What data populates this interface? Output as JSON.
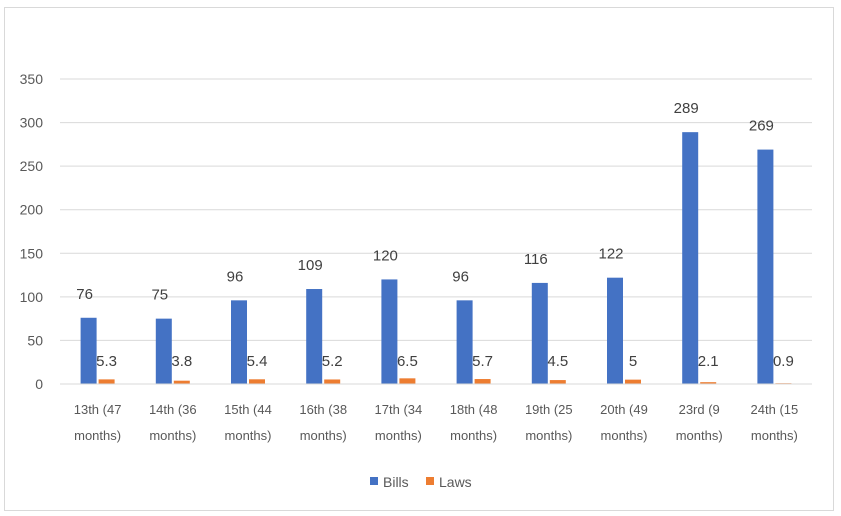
{
  "chart_data": {
    "type": "bar",
    "categories": [
      [
        "13th (47",
        "months)"
      ],
      [
        "14th (36",
        "months)"
      ],
      [
        "15th (44",
        "months)"
      ],
      [
        "16th (38",
        "months)"
      ],
      [
        "17th (34",
        "months)"
      ],
      [
        "18th (48",
        "months)"
      ],
      [
        "19th (25",
        "months)"
      ],
      [
        "20th (49",
        "months)"
      ],
      [
        "23rd (9",
        "months)"
      ],
      [
        "24th (15",
        "months)"
      ]
    ],
    "series": [
      {
        "name": "Bills",
        "values": [
          76,
          75,
          96,
          109,
          120,
          96,
          116,
          122,
          289,
          269
        ],
        "labels": [
          "76",
          "75",
          "96",
          "109",
          "120",
          "96",
          "116",
          "122",
          "289",
          "269"
        ],
        "color": "#4472c4"
      },
      {
        "name": "Laws",
        "values": [
          5.3,
          3.8,
          5.4,
          5.2,
          6.5,
          5.7,
          4.5,
          5,
          2.1,
          0.9
        ],
        "labels": [
          "5.3",
          "3.8",
          "5.4",
          "5.2",
          "6.5",
          "5.7",
          "4.5",
          "5",
          "2.1",
          "0.9"
        ],
        "color": "#ed7d31"
      }
    ],
    "y_ticks": [
      "0",
      "50",
      "100",
      "150",
      "200",
      "250",
      "300",
      "350"
    ],
    "ylim": [
      0,
      350
    ],
    "grid": true,
    "legend_position": "bottom",
    "gridline_color": "#d9d9d9",
    "text_color": "#595959"
  }
}
